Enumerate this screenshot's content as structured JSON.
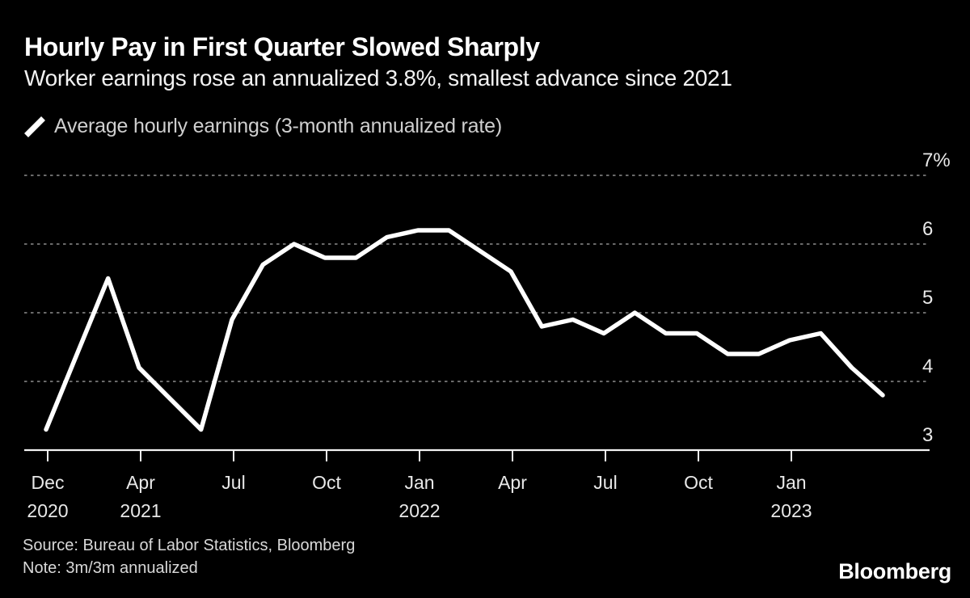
{
  "header": {
    "title": "Hourly Pay in First Quarter Slowed Sharply",
    "subtitle": "Worker earnings rose an annualized 3.8%, smallest advance since 2021"
  },
  "legend": {
    "marker": "line-segment-icon",
    "label": "Average hourly earnings (3-month annualized rate)"
  },
  "footer": {
    "source": "Source: Bureau of Labor Statistics, Bloomberg",
    "note": "Note: 3m/3m annualized"
  },
  "brand": "Bloomberg",
  "colors": {
    "background": "#000000",
    "line": "#ffffff",
    "grid": "#6a6a6a",
    "axis_line": "#f2f2f2",
    "axis_text": "#e8e8e8",
    "title_text": "#ffffff",
    "subtitle_text": "#f2f2f2",
    "legend_text": "#cfcfcf",
    "footer_text": "#d8d8d8"
  },
  "chart_data": {
    "type": "line",
    "title": "Hourly Pay in First Quarter Slowed Sharply",
    "subtitle": "Worker earnings rose an annualized 3.8%, smallest advance since 2021",
    "x": [
      "Dec 2020",
      "Jan 2021",
      "Feb 2021",
      "Mar 2021",
      "Apr 2021",
      "May 2021",
      "Jun 2021",
      "Jul 2021",
      "Aug 2021",
      "Sep 2021",
      "Oct 2021",
      "Nov 2021",
      "Dec 2021",
      "Jan 2022",
      "Feb 2022",
      "Mar 2022",
      "Apr 2022",
      "May 2022",
      "Jun 2022",
      "Jul 2022",
      "Aug 2022",
      "Sep 2022",
      "Oct 2022",
      "Nov 2022",
      "Dec 2022",
      "Jan 2023",
      "Feb 2023",
      "Mar 2023"
    ],
    "series": [
      {
        "name": "Average hourly earnings (3-month annualized rate)",
        "values": [
          3.3,
          4.4,
          5.5,
          4.2,
          3.75,
          3.3,
          4.9,
          5.7,
          6.0,
          5.8,
          5.8,
          6.1,
          6.2,
          6.2,
          5.9,
          5.6,
          4.8,
          4.9,
          4.7,
          5.0,
          4.7,
          4.7,
          4.4,
          4.4,
          4.6,
          4.7,
          4.2,
          3.8
        ]
      }
    ],
    "ylim": [
      3,
      7
    ],
    "yticks": [
      {
        "value": 7,
        "label": "7%"
      },
      {
        "value": 6,
        "label": "6"
      },
      {
        "value": 5,
        "label": "5"
      },
      {
        "value": 4,
        "label": "4"
      },
      {
        "value": 3,
        "label": "3"
      }
    ],
    "xticks": [
      {
        "line1": "Dec",
        "line2": "2020"
      },
      {
        "line1": "Apr",
        "line2": "2021"
      },
      {
        "line1": "Jul",
        "line2": ""
      },
      {
        "line1": "Oct",
        "line2": ""
      },
      {
        "line1": "Jan",
        "line2": "2022"
      },
      {
        "line1": "Apr",
        "line2": ""
      },
      {
        "line1": "Jul",
        "line2": ""
      },
      {
        "line1": "Oct",
        "line2": ""
      },
      {
        "line1": "Jan",
        "line2": "2023"
      }
    ],
    "grid": "horizontal-dashed",
    "legend_position": "top-left",
    "unit": "percent"
  }
}
